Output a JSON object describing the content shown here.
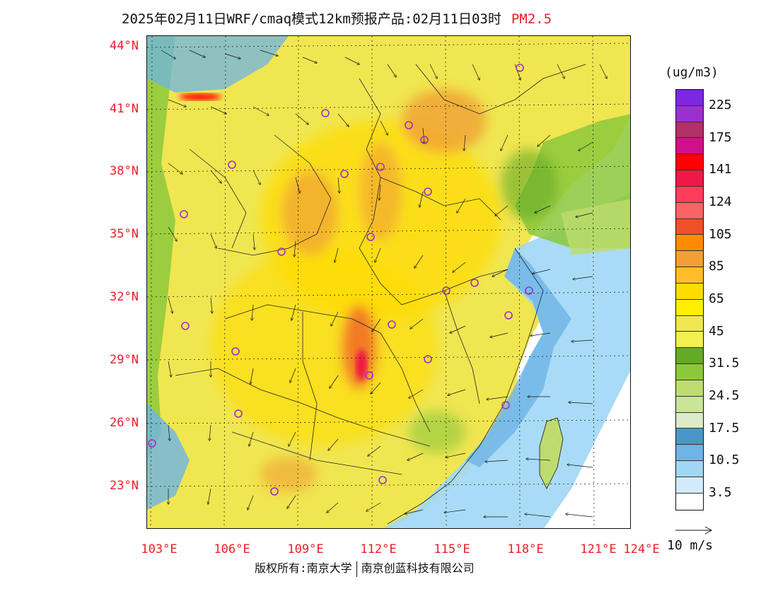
{
  "title": {
    "main": "2025年02月11日WRF/cmaq模式12km预报产品:02月11日03时",
    "variable": "PM2.5"
  },
  "map": {
    "lat_labels": [
      "44°N",
      "41°N",
      "38°N",
      "35°N",
      "32°N",
      "29°N",
      "26°N",
      "23°N"
    ],
    "lon_labels": [
      "103°E",
      "106°E",
      "109°E",
      "112°E",
      "115°E",
      "118°E",
      "121°E",
      "124°E"
    ]
  },
  "legend": {
    "unit": "(ug/m3)",
    "levels": [
      {
        "color": "#7d28e0",
        "label": "225"
      },
      {
        "color": "#9b2fd0",
        "label": ""
      },
      {
        "color": "#b03068",
        "label": "175"
      },
      {
        "color": "#d0108a",
        "label": ""
      },
      {
        "color": "#ff0000",
        "label": "141"
      },
      {
        "color": "#f01848",
        "label": ""
      },
      {
        "color": "#ff3c5a",
        "label": "124"
      },
      {
        "color": "#fa6464",
        "label": ""
      },
      {
        "color": "#f05028",
        "label": "105"
      },
      {
        "color": "#ff8c00",
        "label": ""
      },
      {
        "color": "#f0a032",
        "label": "85"
      },
      {
        "color": "#ffbe28",
        "label": ""
      },
      {
        "color": "#ffdc00",
        "label": "65"
      },
      {
        "color": "#fff000",
        "label": ""
      },
      {
        "color": "#f0e650",
        "label": "45"
      },
      {
        "color": "#f0f050",
        "label": ""
      },
      {
        "color": "#64aa28",
        "label": "31.5"
      },
      {
        "color": "#8cc83c",
        "label": ""
      },
      {
        "color": "#bedc6e",
        "label": "24.5"
      },
      {
        "color": "#c8e696",
        "label": ""
      },
      {
        "color": "#dcebc8",
        "label": "17.5"
      },
      {
        "color": "#4b96c8",
        "label": ""
      },
      {
        "color": "#6eb4e6",
        "label": "10.5"
      },
      {
        "color": "#a0d7f5",
        "label": ""
      },
      {
        "color": "#d2ebfa",
        "label": "3.5"
      },
      {
        "color": "#ffffff",
        "label": ""
      }
    ]
  },
  "wind_reference": {
    "label": "10 m/s"
  },
  "footer": {
    "left": "版权所有:南京大学",
    "right": "南京创蓝科技有限公司"
  }
}
